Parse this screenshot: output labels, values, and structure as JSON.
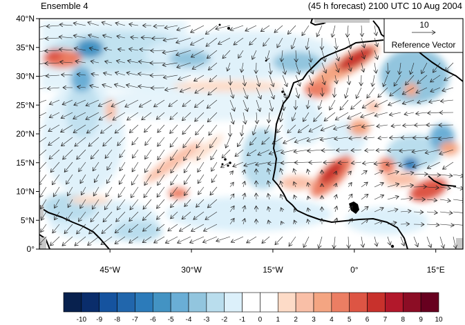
{
  "header": {
    "left_title": "Ensemble 4",
    "right_title": "(45 h forecast) 2100 UTC 10 Aug 2004"
  },
  "map": {
    "lon_range": [
      -58,
      20
    ],
    "lat_range": [
      0,
      40
    ],
    "y_ticks": [
      {
        "lat": 40,
        "label": "40°N"
      },
      {
        "lat": 35,
        "label": "35°N"
      },
      {
        "lat": 30,
        "label": "30°N"
      },
      {
        "lat": 25,
        "label": "25°N"
      },
      {
        "lat": 20,
        "label": "20°N"
      },
      {
        "lat": 15,
        "label": "15°N"
      },
      {
        "lat": 10,
        "label": "10°N"
      },
      {
        "lat": 5,
        "label": "5°N"
      },
      {
        "lat": 0,
        "label": "0°"
      }
    ],
    "x_ticks": [
      {
        "lon": -45,
        "label": "45°W"
      },
      {
        "lon": -30,
        "label": "30°W"
      },
      {
        "lon": -15,
        "label": "15°W"
      },
      {
        "lon": 0,
        "label": "0°"
      },
      {
        "lon": 15,
        "label": "15°E"
      }
    ]
  },
  "reference_vector": {
    "magnitude_label": "10",
    "caption": "Reference Vector"
  },
  "colorbar": {
    "labels": [
      "-10",
      "-9",
      "-8",
      "-7",
      "-6",
      "-5",
      "-4",
      "-3",
      "-2",
      "-1",
      "0",
      "1",
      "2",
      "3",
      "4",
      "5",
      "6",
      "7",
      "8",
      "9",
      "10"
    ],
    "colors": [
      "#08214e",
      "#0a2d6b",
      "#15539f",
      "#2166ac",
      "#2c7bba",
      "#4393c3",
      "#6aaed6",
      "#92c5de",
      "#b9dded",
      "#dcf0fa",
      "#ffffff",
      "#ffffff",
      "#fddbc7",
      "#f9bfa7",
      "#f4a582",
      "#ec7e63",
      "#dd5544",
      "#c8312c",
      "#b2182b",
      "#8c0d25",
      "#67001f"
    ]
  }
}
